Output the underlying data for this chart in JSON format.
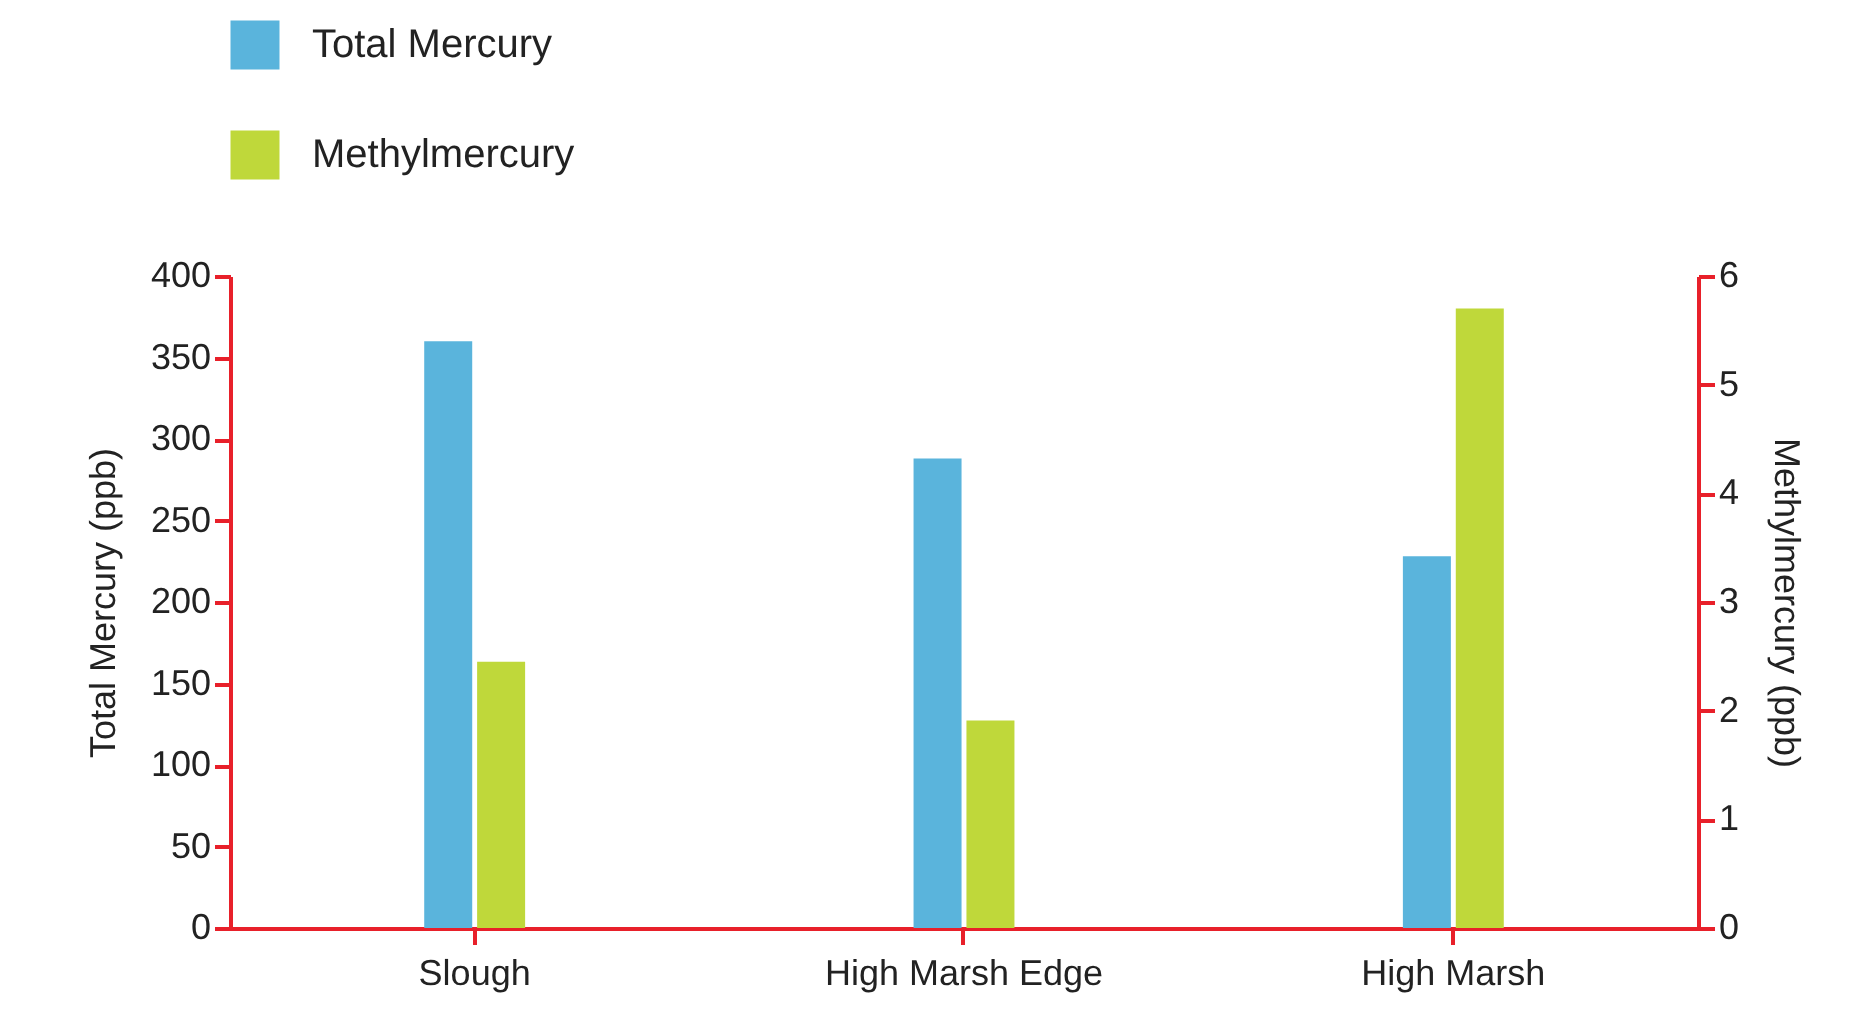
{
  "chart_data": {
    "type": "bar",
    "categories": [
      "Slough",
      "High Marsh Edge",
      "High Marsh"
    ],
    "series": [
      {
        "name": "Total Mercury",
        "color": "#5ab4dc",
        "values": [
          360,
          288,
          228
        ]
      },
      {
        "name": "Methylmercury",
        "color": "#bfd83a",
        "values": [
          2.45,
          1.91,
          5.7
        ],
        "axis": "y2"
      }
    ],
    "ylabel": "Total Mercury (ppb)",
    "y2label": "Methylmercury (ppb)",
    "ylim": [
      0,
      400
    ],
    "yticks": [
      0,
      50,
      100,
      150,
      200,
      250,
      300,
      350,
      400
    ],
    "y2lim": [
      0,
      6
    ],
    "y2ticks": [
      0,
      1,
      2,
      3,
      4,
      5,
      6
    ],
    "grid": false,
    "legend": "top left"
  }
}
